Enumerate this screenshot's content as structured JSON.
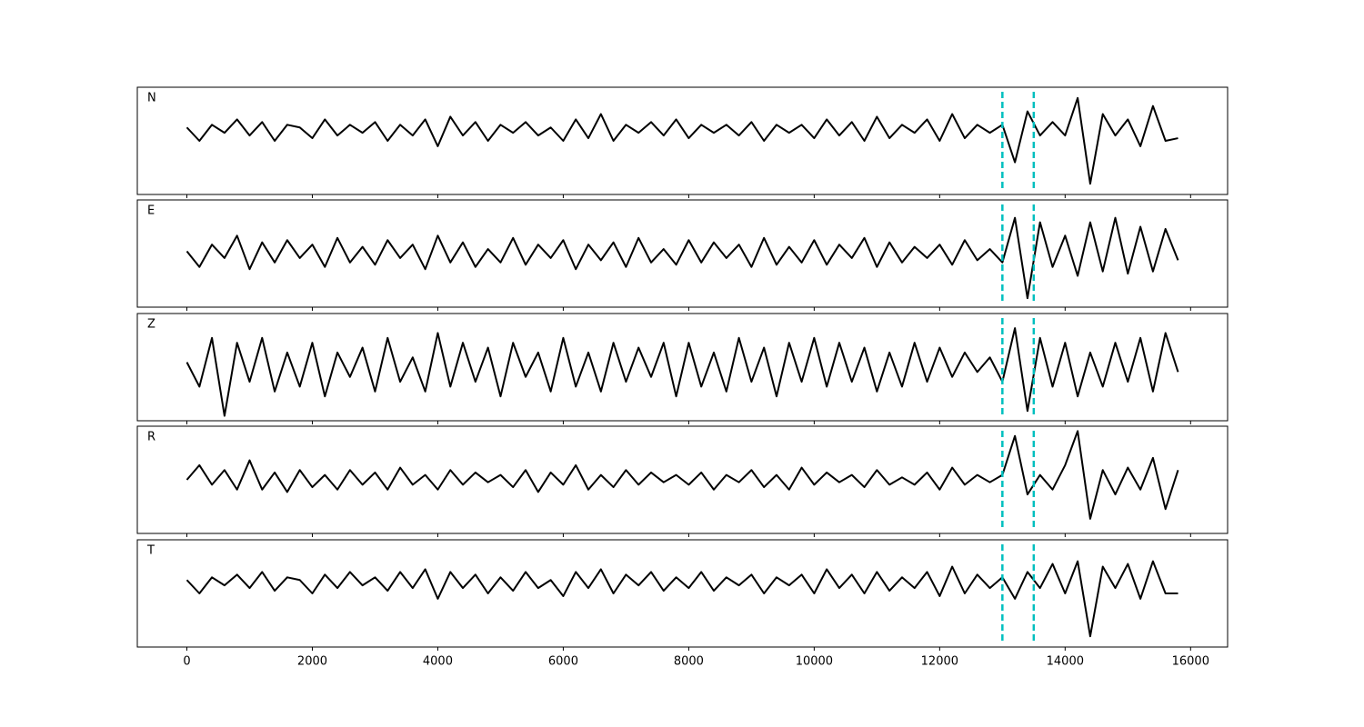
{
  "chart_data": [
    {
      "type": "line",
      "label": "N",
      "xlim": [
        -790,
        16590
      ],
      "ylim": [
        -1.2,
        0.8
      ],
      "vlines": [
        13000,
        13500
      ],
      "vline_color": "#00bfbf",
      "x": [
        0,
        200,
        400,
        600,
        800,
        1000,
        1200,
        1400,
        1600,
        1800,
        2000,
        2200,
        2400,
        2600,
        2800,
        3000,
        3200,
        3400,
        3600,
        3800,
        4000,
        4200,
        4400,
        4600,
        4800,
        5000,
        5200,
        5400,
        5600,
        5800,
        6000,
        6200,
        6400,
        6600,
        6800,
        7000,
        7200,
        7400,
        7600,
        7800,
        8000,
        8200,
        8400,
        8600,
        8800,
        9000,
        9200,
        9400,
        9600,
        9800,
        10000,
        10200,
        10400,
        10600,
        10800,
        11000,
        11200,
        11400,
        11600,
        11800,
        12000,
        12200,
        12400,
        12600,
        12800,
        13000,
        13200,
        13400,
        13600,
        13800,
        14000,
        14200,
        14400,
        14600,
        14800,
        15000,
        15200,
        15400,
        15600,
        15800
      ],
      "series": [
        {
          "color": "#000000",
          "values": [
            0.05,
            -0.2,
            0.1,
            -0.05,
            0.2,
            -0.1,
            0.15,
            -0.2,
            0.1,
            0.05,
            -0.15,
            0.2,
            -0.1,
            0.1,
            -0.05,
            0.15,
            -0.2,
            0.1,
            -0.1,
            0.2,
            -0.3,
            0.25,
            -0.1,
            0.15,
            -0.2,
            0.1,
            -0.05,
            0.15,
            -0.1,
            0.05,
            -0.2,
            0.2,
            -0.15,
            0.3,
            -0.2,
            0.1,
            -0.05,
            0.15,
            -0.1,
            0.2,
            -0.15,
            0.1,
            -0.05,
            0.1,
            -0.1,
            0.15,
            -0.2,
            0.1,
            -0.05,
            0.1,
            -0.15,
            0.2,
            -0.1,
            0.15,
            -0.2,
            0.25,
            -0.15,
            0.1,
            -0.05,
            0.2,
            -0.2,
            0.3,
            -0.15,
            0.1,
            -0.05,
            0.1,
            -0.6,
            0.35,
            -0.1,
            0.15,
            -0.1,
            0.6,
            -1.0,
            0.3,
            -0.1,
            0.2,
            -0.3,
            0.45,
            -0.2,
            -0.15
          ]
        }
      ]
    },
    {
      "type": "line",
      "label": "E",
      "xlim": [
        -790,
        16590
      ],
      "ylim": [
        -1.2,
        1.2
      ],
      "vlines": [
        13000,
        13500
      ],
      "vline_color": "#00bfbf",
      "x": [
        0,
        200,
        400,
        600,
        800,
        1000,
        1200,
        1400,
        1600,
        1800,
        2000,
        2200,
        2400,
        2600,
        2800,
        3000,
        3200,
        3400,
        3600,
        3800,
        4000,
        4200,
        4400,
        4600,
        4800,
        5000,
        5200,
        5400,
        5600,
        5800,
        6000,
        6200,
        6400,
        6600,
        6800,
        7000,
        7200,
        7400,
        7600,
        7800,
        8000,
        8200,
        8400,
        8600,
        8800,
        9000,
        9200,
        9400,
        9600,
        9800,
        10000,
        10200,
        10400,
        10600,
        10800,
        11000,
        11200,
        11400,
        11600,
        11800,
        12000,
        12200,
        12400,
        12600,
        12800,
        13000,
        13200,
        13400,
        13600,
        13800,
        14000,
        14200,
        14400,
        14600,
        14800,
        15000,
        15200,
        15400,
        15600,
        15800
      ],
      "series": [
        {
          "color": "#000000",
          "values": [
            0.05,
            -0.3,
            0.2,
            -0.1,
            0.4,
            -0.35,
            0.25,
            -0.2,
            0.3,
            -0.1,
            0.2,
            -0.3,
            0.35,
            -0.2,
            0.15,
            -0.25,
            0.3,
            -0.1,
            0.2,
            -0.35,
            0.4,
            -0.2,
            0.25,
            -0.3,
            0.1,
            -0.2,
            0.35,
            -0.25,
            0.2,
            -0.1,
            0.3,
            -0.35,
            0.2,
            -0.15,
            0.25,
            -0.3,
            0.35,
            -0.2,
            0.1,
            -0.25,
            0.3,
            -0.2,
            0.25,
            -0.1,
            0.2,
            -0.3,
            0.35,
            -0.25,
            0.15,
            -0.2,
            0.3,
            -0.25,
            0.2,
            -0.1,
            0.35,
            -0.3,
            0.25,
            -0.2,
            0.15,
            -0.1,
            0.2,
            -0.25,
            0.3,
            -0.15,
            0.1,
            -0.2,
            0.8,
            -1.0,
            0.7,
            -0.3,
            0.4,
            -0.5,
            0.7,
            -0.4,
            0.8,
            -0.45,
            0.6,
            -0.4,
            0.55,
            -0.15
          ]
        }
      ]
    },
    {
      "type": "line",
      "label": "Z",
      "xlim": [
        -790,
        16590
      ],
      "ylim": [
        -1.1,
        1.1
      ],
      "vlines": [
        13000,
        13500
      ],
      "vline_color": "#00bfbf",
      "x": [
        0,
        200,
        400,
        600,
        800,
        1000,
        1200,
        1400,
        1600,
        1800,
        2000,
        2200,
        2400,
        2600,
        2800,
        3000,
        3200,
        3400,
        3600,
        3800,
        4000,
        4200,
        4400,
        4600,
        4800,
        5000,
        5200,
        5400,
        5600,
        5800,
        6000,
        6200,
        6400,
        6600,
        6800,
        7000,
        7200,
        7400,
        7600,
        7800,
        8000,
        8200,
        8400,
        8600,
        8800,
        9000,
        9200,
        9400,
        9600,
        9800,
        10000,
        10200,
        10400,
        10600,
        10800,
        11000,
        11200,
        11400,
        11600,
        11800,
        12000,
        12200,
        12400,
        12600,
        12800,
        13000,
        13200,
        13400,
        13600,
        13800,
        14000,
        14200,
        14400,
        14600,
        14800,
        15000,
        15200,
        15400,
        15600,
        15800
      ],
      "series": [
        {
          "color": "#000000",
          "values": [
            0.1,
            -0.4,
            0.6,
            -1.0,
            0.5,
            -0.3,
            0.6,
            -0.5,
            0.3,
            -0.4,
            0.5,
            -0.6,
            0.3,
            -0.2,
            0.4,
            -0.5,
            0.6,
            -0.3,
            0.2,
            -0.5,
            0.7,
            -0.4,
            0.5,
            -0.3,
            0.4,
            -0.6,
            0.5,
            -0.2,
            0.3,
            -0.5,
            0.6,
            -0.4,
            0.3,
            -0.5,
            0.5,
            -0.3,
            0.4,
            -0.2,
            0.5,
            -0.6,
            0.5,
            -0.4,
            0.3,
            -0.5,
            0.6,
            -0.3,
            0.4,
            -0.6,
            0.5,
            -0.3,
            0.6,
            -0.4,
            0.5,
            -0.3,
            0.4,
            -0.5,
            0.3,
            -0.4,
            0.5,
            -0.3,
            0.4,
            -0.2,
            0.3,
            -0.1,
            0.2,
            -0.3,
            0.8,
            -0.9,
            0.6,
            -0.4,
            0.5,
            -0.6,
            0.3,
            -0.4,
            0.5,
            -0.3,
            0.6,
            -0.5,
            0.7,
            -0.1
          ]
        }
      ]
    },
    {
      "type": "line",
      "label": "R",
      "xlim": [
        -790,
        16590
      ],
      "ylim": [
        -1.1,
        1.1
      ],
      "vlines": [
        13000,
        13500
      ],
      "vline_color": "#00bfbf",
      "x": [
        0,
        200,
        400,
        600,
        800,
        1000,
        1200,
        1400,
        1600,
        1800,
        2000,
        2200,
        2400,
        2600,
        2800,
        3000,
        3200,
        3400,
        3600,
        3800,
        4000,
        4200,
        4400,
        4600,
        4800,
        5000,
        5200,
        5400,
        5600,
        5800,
        6000,
        6200,
        6400,
        6600,
        6800,
        7000,
        7200,
        7400,
        7600,
        7800,
        8000,
        8200,
        8400,
        8600,
        8800,
        9000,
        9200,
        9400,
        9600,
        9800,
        10000,
        10200,
        10400,
        10600,
        10800,
        11000,
        11200,
        11400,
        11600,
        11800,
        12000,
        12200,
        12400,
        12600,
        12800,
        13000,
        13200,
        13400,
        13600,
        13800,
        14000,
        14200,
        14400,
        14600,
        14800,
        15000,
        15200,
        15400,
        15600,
        15800
      ],
      "series": [
        {
          "color": "#000000",
          "values": [
            0.0,
            0.3,
            -0.1,
            0.2,
            -0.2,
            0.4,
            -0.2,
            0.15,
            -0.25,
            0.2,
            -0.15,
            0.1,
            -0.2,
            0.2,
            -0.1,
            0.15,
            -0.2,
            0.25,
            -0.1,
            0.1,
            -0.2,
            0.2,
            -0.1,
            0.15,
            -0.05,
            0.1,
            -0.15,
            0.2,
            -0.25,
            0.15,
            -0.1,
            0.3,
            -0.2,
            0.1,
            -0.15,
            0.2,
            -0.1,
            0.15,
            -0.05,
            0.1,
            -0.1,
            0.15,
            -0.2,
            0.1,
            -0.05,
            0.2,
            -0.15,
            0.1,
            -0.2,
            0.25,
            -0.1,
            0.15,
            -0.05,
            0.1,
            -0.15,
            0.2,
            -0.1,
            0.05,
            -0.1,
            0.15,
            -0.2,
            0.25,
            -0.1,
            0.1,
            -0.05,
            0.1,
            0.9,
            -0.3,
            0.1,
            -0.2,
            0.3,
            1.0,
            -0.8,
            0.2,
            -0.3,
            0.25,
            -0.2,
            0.45,
            -0.6,
            0.2
          ]
        }
      ]
    },
    {
      "type": "line",
      "label": "T",
      "xlim": [
        -790,
        16590
      ],
      "ylim": [
        -1.2,
        0.8
      ],
      "vlines": [
        13000,
        13500
      ],
      "vline_color": "#00bfbf",
      "xticks": [
        0,
        2000,
        4000,
        6000,
        8000,
        10000,
        12000,
        14000,
        16000
      ],
      "x": [
        0,
        200,
        400,
        600,
        800,
        1000,
        1200,
        1400,
        1600,
        1800,
        2000,
        2200,
        2400,
        2600,
        2800,
        3000,
        3200,
        3400,
        3600,
        3800,
        4000,
        4200,
        4400,
        4600,
        4800,
        5000,
        5200,
        5400,
        5600,
        5800,
        6000,
        6200,
        6400,
        6600,
        6800,
        7000,
        7200,
        7400,
        7600,
        7800,
        8000,
        8200,
        8400,
        8600,
        8800,
        9000,
        9200,
        9400,
        9600,
        9800,
        10000,
        10200,
        10400,
        10600,
        10800,
        11000,
        11200,
        11400,
        11600,
        11800,
        12000,
        12200,
        12400,
        12600,
        12800,
        13000,
        13200,
        13400,
        13600,
        13800,
        14000,
        14200,
        14400,
        14600,
        14800,
        15000,
        15200,
        15400,
        15600,
        15800
      ],
      "series": [
        {
          "color": "#000000",
          "values": [
            0.05,
            -0.2,
            0.1,
            -0.05,
            0.15,
            -0.1,
            0.2,
            -0.15,
            0.1,
            0.05,
            -0.2,
            0.15,
            -0.1,
            0.2,
            -0.05,
            0.1,
            -0.15,
            0.2,
            -0.1,
            0.25,
            -0.3,
            0.2,
            -0.1,
            0.15,
            -0.2,
            0.1,
            -0.15,
            0.2,
            -0.1,
            0.05,
            -0.25,
            0.2,
            -0.1,
            0.25,
            -0.2,
            0.15,
            -0.05,
            0.2,
            -0.15,
            0.1,
            -0.1,
            0.2,
            -0.15,
            0.1,
            -0.05,
            0.15,
            -0.2,
            0.1,
            -0.05,
            0.15,
            -0.2,
            0.25,
            -0.1,
            0.15,
            -0.2,
            0.2,
            -0.15,
            0.1,
            -0.1,
            0.2,
            -0.25,
            0.3,
            -0.2,
            0.15,
            -0.1,
            0.1,
            -0.3,
            0.2,
            -0.1,
            0.35,
            -0.2,
            0.4,
            -1.0,
            0.3,
            -0.1,
            0.35,
            -0.3,
            0.4,
            -0.2,
            -0.2
          ]
        }
      ]
    }
  ]
}
